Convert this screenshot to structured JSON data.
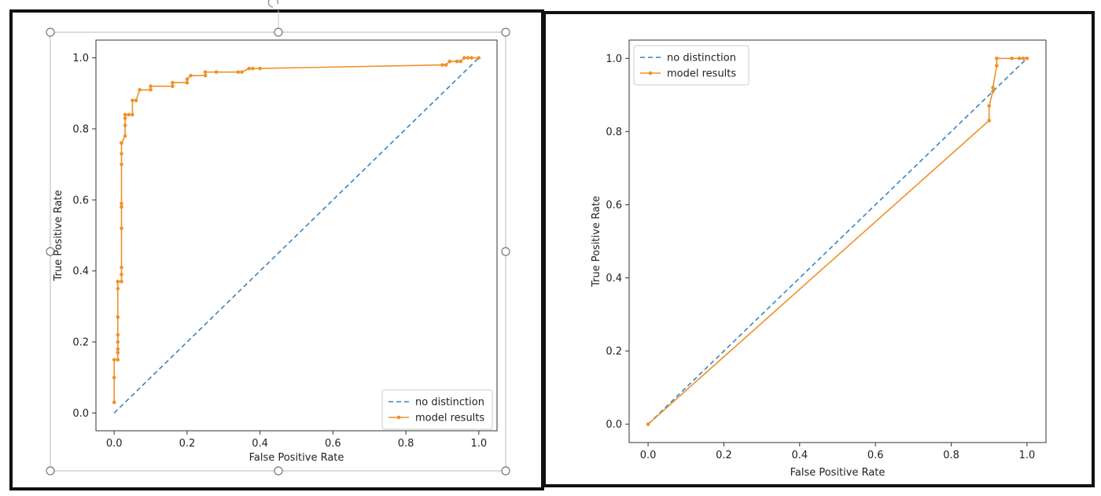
{
  "chart_data": [
    {
      "type": "line",
      "title": "",
      "xlabel": "False Positive Rate",
      "ylabel": "True Positive Rate",
      "xlim": [
        -0.05,
        1.05
      ],
      "ylim": [
        -0.05,
        1.05
      ],
      "xticks": [
        "0.0",
        "0.2",
        "0.4",
        "0.6",
        "0.8",
        "1.0"
      ],
      "yticks": [
        "0.0",
        "0.2",
        "0.4",
        "0.6",
        "0.8",
        "1.0"
      ],
      "grid": false,
      "legend_position": "lower right",
      "series": [
        {
          "name": "no distinction",
          "style": "dashed",
          "color": "#3b83bd",
          "marker": "none",
          "x": [
            0.0,
            1.0
          ],
          "y": [
            0.0,
            1.0
          ]
        },
        {
          "name": "model results",
          "style": "solid",
          "color": "#f0902a",
          "marker": "dot",
          "x": [
            0.0,
            0.0,
            0.0,
            0.01,
            0.01,
            0.01,
            0.01,
            0.01,
            0.01,
            0.01,
            0.01,
            0.01,
            0.02,
            0.02,
            0.02,
            0.02,
            0.02,
            0.02,
            0.02,
            0.02,
            0.02,
            0.02,
            0.02,
            0.03,
            0.03,
            0.03,
            0.03,
            0.04,
            0.05,
            0.05,
            0.06,
            0.07,
            0.1,
            0.1,
            0.16,
            0.16,
            0.2,
            0.2,
            0.21,
            0.25,
            0.25,
            0.28,
            0.34,
            0.35,
            0.37,
            0.38,
            0.4,
            0.9,
            0.91,
            0.92,
            0.94,
            0.95,
            0.96,
            0.97,
            0.98,
            1.0
          ],
          "y": [
            0.03,
            0.1,
            0.15,
            0.15,
            0.17,
            0.18,
            0.2,
            0.22,
            0.27,
            0.35,
            0.37,
            0.37,
            0.37,
            0.39,
            0.41,
            0.52,
            0.58,
            0.59,
            0.7,
            0.73,
            0.76,
            0.76,
            0.76,
            0.78,
            0.81,
            0.83,
            0.84,
            0.84,
            0.84,
            0.88,
            0.88,
            0.91,
            0.91,
            0.92,
            0.92,
            0.93,
            0.93,
            0.94,
            0.95,
            0.95,
            0.96,
            0.96,
            0.96,
            0.96,
            0.97,
            0.97,
            0.97,
            0.98,
            0.98,
            0.99,
            0.99,
            0.99,
            1.0,
            1.0,
            1.0,
            1.0
          ]
        }
      ]
    },
    {
      "type": "line",
      "title": "",
      "xlabel": "False Positive Rate",
      "ylabel": "True Positive Rate",
      "xlim": [
        -0.05,
        1.05
      ],
      "ylim": [
        -0.05,
        1.05
      ],
      "xticks": [
        "0.0",
        "0.2",
        "0.4",
        "0.6",
        "0.8",
        "1.0"
      ],
      "yticks": [
        "0.0",
        "0.2",
        "0.4",
        "0.6",
        "0.8",
        "1.0"
      ],
      "grid": false,
      "legend_position": "upper left",
      "series": [
        {
          "name": "no distinction",
          "style": "dashed",
          "color": "#3b83bd",
          "marker": "none",
          "x": [
            0.0,
            1.0
          ],
          "y": [
            0.0,
            1.0
          ]
        },
        {
          "name": "model results",
          "style": "solid",
          "color": "#f0902a",
          "marker": "dot",
          "x": [
            0.0,
            0.9,
            0.9,
            0.91,
            0.91,
            0.92,
            0.92,
            0.96,
            0.98,
            0.99,
            1.0
          ],
          "y": [
            0.0,
            0.83,
            0.87,
            0.91,
            0.92,
            0.98,
            1.0,
            1.0,
            1.0,
            1.0,
            1.0
          ]
        }
      ]
    }
  ]
}
